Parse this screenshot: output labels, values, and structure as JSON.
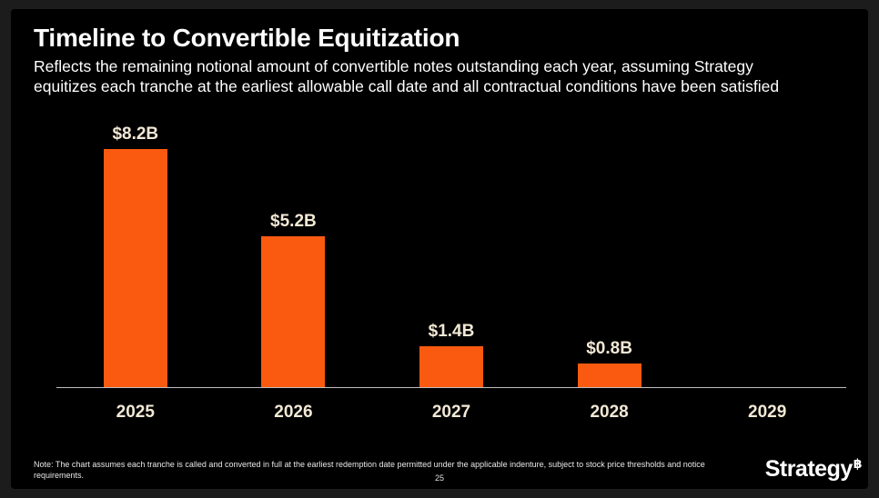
{
  "slide": {
    "title": "Timeline to Convertible Equitization",
    "subtitle_line1": "Reflects the remaining notional amount of convertible notes outstanding each year, assuming Strategy",
    "subtitle_line2": "equitizes each tranche at the earliest allowable call date and all contractual conditions have been satisfied",
    "note_line1": "Note: The chart assumes each tranche is called and converted in full at the earliest redemption date permitted under the applicable indenture, subject to stock price thresholds and notice",
    "note_line2": "requirements.",
    "page_number": "25",
    "logo": {
      "text": "Strategy",
      "symbol": "฿"
    }
  },
  "colors": {
    "background": "#000000",
    "frame": "#1c1c1c",
    "bar": "#fa5a10",
    "label": "#f2e8d5",
    "axis": "#bdbdbd"
  },
  "chart_data": {
    "type": "bar",
    "title": "Timeline to Convertible Equitization",
    "categories": [
      "2025",
      "2026",
      "2027",
      "2028",
      "2029"
    ],
    "values": [
      8.2,
      5.2,
      1.4,
      0.8,
      0
    ],
    "value_labels": [
      "$8.2B",
      "$5.2B",
      "$1.4B",
      "$0.8B",
      ""
    ],
    "xlabel": "",
    "ylabel": "",
    "unit": "USD billions",
    "ylim": [
      0,
      9.25
    ],
    "grid": false,
    "legend": false,
    "bar_color": "#fa5a10",
    "label_color": "#f2e8d5"
  }
}
